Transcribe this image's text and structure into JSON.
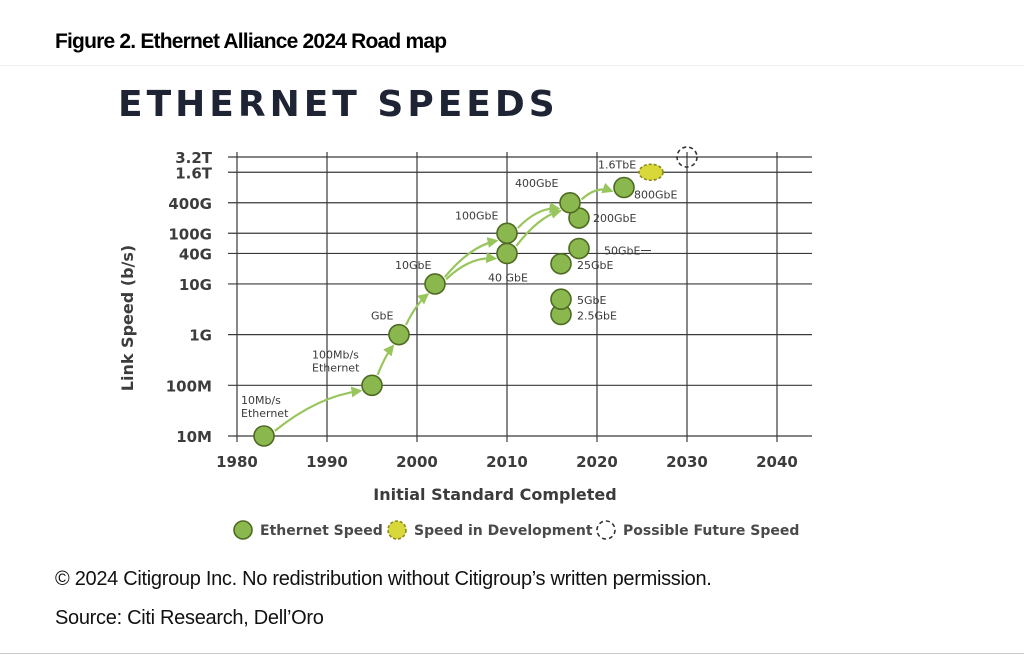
{
  "figure": {
    "title": "Figure 2. Ethernet Alliance 2024 Road map",
    "copyright": "© 2024 Citigroup Inc. No redistribution without Citigroup’s written permission.",
    "source": "Source: Citi Research, Dell’Oro"
  },
  "colors": {
    "ethernet_fill": "#8ab84e",
    "ethernet_stroke": "#4f6b22",
    "development_fill": "#d9d83a",
    "arrow": "#98c65c",
    "grid": "#3a3a3a",
    "title_text": "#1e2434",
    "axis_text": "#3c3c3c"
  },
  "chart_data": {
    "type": "scatter",
    "title": "ETHERNET SPEEDS",
    "xlabel": "Initial Standard Completed",
    "ylabel": "Link Speed (b/s)",
    "x_ticks": [
      "1980",
      "1990",
      "2000",
      "2010",
      "2020",
      "2030",
      "2040"
    ],
    "x_range": [
      1980,
      2040
    ],
    "y_scale": "log",
    "y_ticks": [
      "10M",
      "100M",
      "1G",
      "10G",
      "40G",
      "100G",
      "400G",
      "1.6T",
      "3.2T"
    ],
    "grid": true,
    "legend_position": "bottom",
    "legend": [
      {
        "key": "ethernet",
        "label": "Ethernet Speed"
      },
      {
        "key": "development",
        "label": "Speed in Development"
      },
      {
        "key": "future",
        "label": "Possible Future Speed"
      }
    ],
    "points": [
      {
        "label": "10Mb/s Ethernet",
        "x": 1983,
        "y": "10M",
        "status": "ethernet"
      },
      {
        "label": "100Mb/s Ethernet",
        "x": 1995,
        "y": "100M",
        "status": "ethernet"
      },
      {
        "label": "GbE",
        "x": 1998,
        "y": "1G",
        "status": "ethernet"
      },
      {
        "label": "10GbE",
        "x": 2002,
        "y": "10G",
        "status": "ethernet"
      },
      {
        "label": "40 GbE",
        "x": 2010,
        "y": "40G",
        "status": "ethernet"
      },
      {
        "label": "100GbE",
        "x": 2010,
        "y": "100G",
        "status": "ethernet"
      },
      {
        "label": "2.5GbE",
        "x": 2016,
        "y": "2.5G",
        "status": "ethernet"
      },
      {
        "label": "5GbE",
        "x": 2016,
        "y": "5G",
        "status": "ethernet"
      },
      {
        "label": "25GbE",
        "x": 2016,
        "y": "25G",
        "status": "ethernet"
      },
      {
        "label": "50GbE",
        "x": 2018,
        "y": "50G",
        "status": "ethernet"
      },
      {
        "label": "200GbE",
        "x": 2018,
        "y": "200G",
        "status": "ethernet"
      },
      {
        "label": "400GbE",
        "x": 2017,
        "y": "400G",
        "status": "ethernet"
      },
      {
        "label": "800GbE",
        "x": 2023,
        "y": "800G",
        "status": "ethernet"
      },
      {
        "label": "1.6TbE",
        "x": 2026,
        "y": "1.6T",
        "status": "development"
      },
      {
        "label": "",
        "x": 2030,
        "y": "3.2T",
        "status": "future"
      }
    ],
    "arrows": [
      {
        "from": "10M",
        "to": "100M"
      },
      {
        "from": "100M",
        "to": "1G"
      },
      {
        "from": "1G",
        "to": "10G"
      },
      {
        "from": "10G",
        "to": "100G"
      },
      {
        "from": "10G",
        "to": "40G"
      },
      {
        "from": "100G",
        "to": "400G"
      },
      {
        "from": "40G",
        "to": "400G"
      },
      {
        "from": "400G",
        "to": "800G"
      }
    ]
  }
}
